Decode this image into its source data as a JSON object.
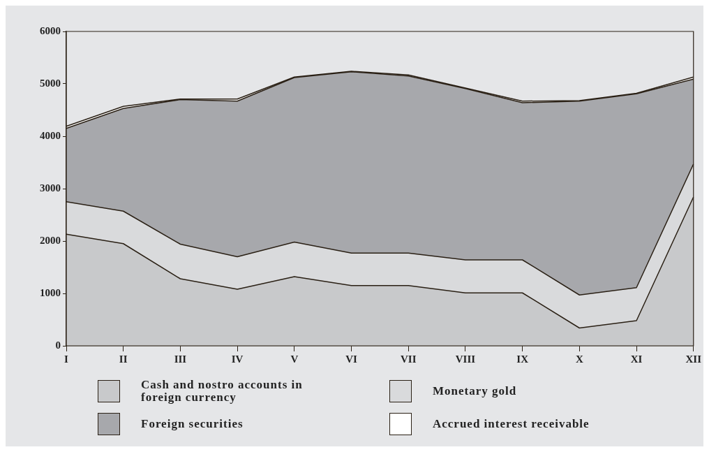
{
  "chart_data": {
    "type": "area",
    "stacked": true,
    "categories": [
      "I",
      "II",
      "III",
      "IV",
      "V",
      "VI",
      "VII",
      "VIII",
      "IX",
      "X",
      "XI",
      "XII"
    ],
    "series": [
      {
        "name": "Cash and nostro accounts in foreign currency",
        "color": "#c8c9cb",
        "values": [
          2130,
          1950,
          1280,
          1080,
          1320,
          1150,
          1150,
          1010,
          1010,
          340,
          480,
          2840
        ]
      },
      {
        "name": "Monetary gold",
        "color": "#d9dadc",
        "values": [
          620,
          620,
          660,
          620,
          660,
          620,
          620,
          630,
          630,
          630,
          630,
          630
        ]
      },
      {
        "name": "Foreign securities",
        "color": "#a7a8ac",
        "values": [
          1400,
          1960,
          2760,
          2970,
          3140,
          3460,
          3380,
          3270,
          3000,
          3700,
          3700,
          1620
        ]
      },
      {
        "name": "Accrued interest receivable",
        "color": "#ffffff",
        "values": [
          40,
          40,
          10,
          40,
          10,
          10,
          20,
          10,
          30,
          10,
          10,
          40
        ]
      }
    ],
    "ylim": [
      0,
      6000
    ],
    "yticks": [
      0,
      1000,
      2000,
      3000,
      4000,
      5000,
      6000
    ],
    "grid": false,
    "legend": "bottom",
    "marker": "none",
    "line_style": "solid"
  }
}
